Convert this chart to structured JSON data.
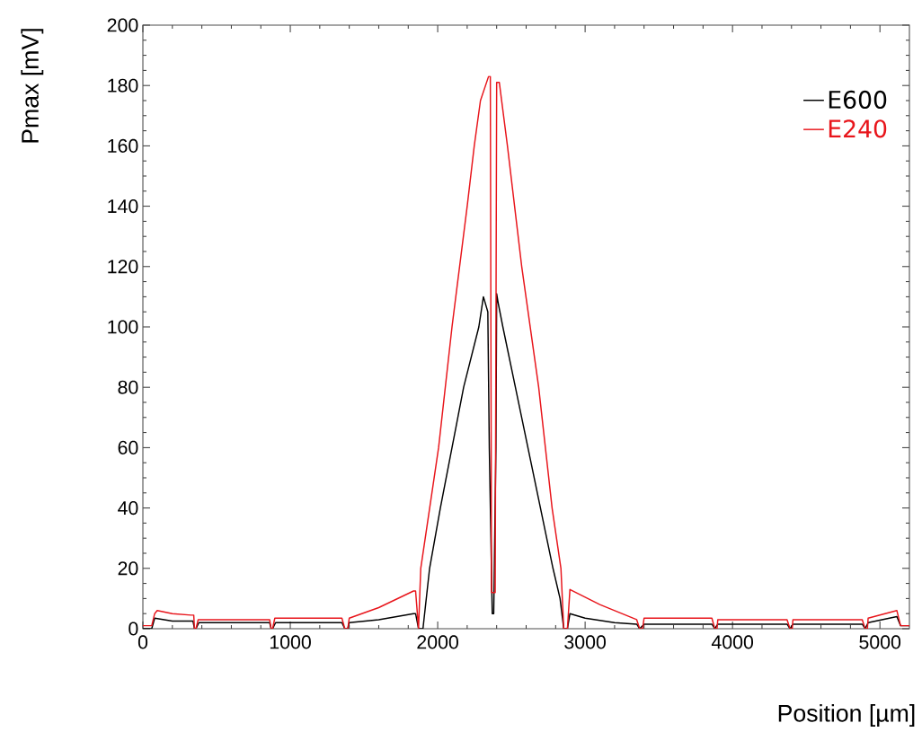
{
  "chart_data": {
    "type": "line",
    "xlabel": "Position [µm]",
    "ylabel": "Pmax [mV]",
    "xlim": [
      0,
      5200
    ],
    "ylim": [
      0,
      200
    ],
    "xticks": [
      0,
      1000,
      2000,
      3000,
      4000,
      5000
    ],
    "yticks": [
      0,
      20,
      40,
      60,
      80,
      100,
      120,
      140,
      160,
      180,
      200
    ],
    "grid": false,
    "legend": "top right",
    "marker": "none",
    "line_style": "solid",
    "series": [
      {
        "name": "E600",
        "color": "#000000",
        "x": [
          0,
          60,
          80,
          200,
          340,
          350,
          360,
          380,
          860,
          870,
          880,
          900,
          1350,
          1370,
          1390,
          1400,
          1600,
          1836,
          1850,
          1870,
          1900,
          1945,
          2018,
          2097,
          2176,
          2279,
          2310,
          2340,
          2350,
          2370,
          2380,
          2395,
          2400,
          2410,
          2442,
          2527,
          2612,
          2697,
          2782,
          2830,
          2855,
          2880,
          2897,
          3000,
          3200,
          3350,
          3370,
          3400,
          3860,
          3880,
          3900,
          4370,
          4390,
          4410,
          4880,
          4900,
          4920,
          5115,
          5140,
          5200
        ],
        "values": [
          0,
          0,
          3.5,
          2.5,
          2.5,
          0,
          0,
          2,
          2,
          0,
          0,
          2,
          2,
          0,
          0,
          2,
          3,
          5,
          5,
          0,
          0,
          20,
          40,
          60,
          80,
          100,
          110,
          105,
          60,
          5,
          5,
          60,
          111,
          108,
          100,
          80,
          60,
          40,
          20,
          10,
          0,
          0,
          5,
          3.5,
          2,
          1.5,
          0,
          1.5,
          1.5,
          0,
          1.5,
          1.5,
          0,
          1.5,
          1.5,
          0,
          2,
          4,
          1,
          1
        ]
      },
      {
        "name": "E240",
        "color": "#e8151b",
        "x": [
          0,
          60,
          80,
          97,
          200,
          327,
          345,
          350,
          360,
          375,
          380,
          860,
          870,
          880,
          895,
          900,
          1350,
          1370,
          1390,
          1400,
          1600,
          1836,
          1850,
          1870,
          1885,
          2006,
          2097,
          2200,
          2248,
          2290,
          2345,
          2357,
          2365,
          2390,
          2400,
          2418,
          2473,
          2570,
          2685,
          2776,
          2836,
          2855,
          2880,
          2897,
          3100,
          3350,
          3370,
          3390,
          3400,
          3860,
          3880,
          3895,
          3900,
          4370,
          4390,
          4405,
          4410,
          4880,
          4900,
          4915,
          4920,
          5115,
          5140,
          5200
        ],
        "values": [
          1,
          1,
          5,
          6,
          5,
          4.5,
          4.5,
          0,
          0,
          3,
          3,
          3,
          0,
          0,
          3.5,
          3.5,
          3.5,
          0,
          0,
          3.5,
          7,
          12.5,
          12.5,
          0,
          20,
          60,
          100,
          140,
          160,
          175,
          183,
          183,
          12,
          12,
          181,
          181,
          160,
          120,
          80,
          40,
          20,
          0,
          0,
          13,
          8,
          3,
          0,
          0,
          3.5,
          3.5,
          0,
          0,
          3,
          3,
          0,
          0,
          3,
          3,
          0,
          0,
          3.5,
          6,
          1,
          1
        ]
      }
    ]
  }
}
